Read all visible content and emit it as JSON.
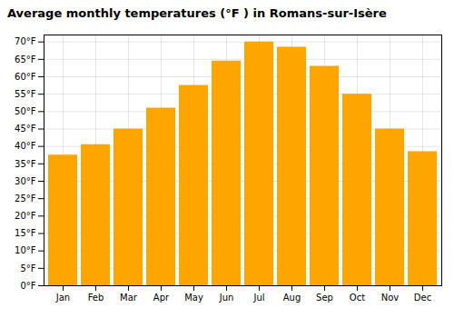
{
  "chart_data": {
    "type": "bar",
    "title": "Average monthly temperatures (°F ) in Romans-sur-Isère",
    "categories": [
      "Jan",
      "Feb",
      "Mar",
      "Apr",
      "May",
      "Jun",
      "Jul",
      "Aug",
      "Sep",
      "Oct",
      "Nov",
      "Dec"
    ],
    "values": [
      37.5,
      40.5,
      45,
      51,
      57.5,
      64.5,
      70,
      68.5,
      63,
      55,
      45,
      38.5
    ],
    "color": "#FFA500",
    "ylim": [
      0,
      72
    ],
    "yticks": [
      {
        "value": 0,
        "label": "0°F"
      },
      {
        "value": 5,
        "label": "5°F"
      },
      {
        "value": 10,
        "label": "10°F"
      },
      {
        "value": 15,
        "label": "15°F"
      },
      {
        "value": 20,
        "label": "20°F"
      },
      {
        "value": 25,
        "label": "25°F"
      },
      {
        "value": 30,
        "label": "30°F"
      },
      {
        "value": 35,
        "label": "35°F"
      },
      {
        "value": 40,
        "label": "40°F"
      },
      {
        "value": 45,
        "label": "45°F"
      },
      {
        "value": 50,
        "label": "50°F"
      },
      {
        "value": 55,
        "label": "55°F"
      },
      {
        "value": 60,
        "label": "60°F"
      },
      {
        "value": 65,
        "label": "65°F"
      },
      {
        "value": 70,
        "label": "70°F"
      }
    ],
    "grid": true
  }
}
